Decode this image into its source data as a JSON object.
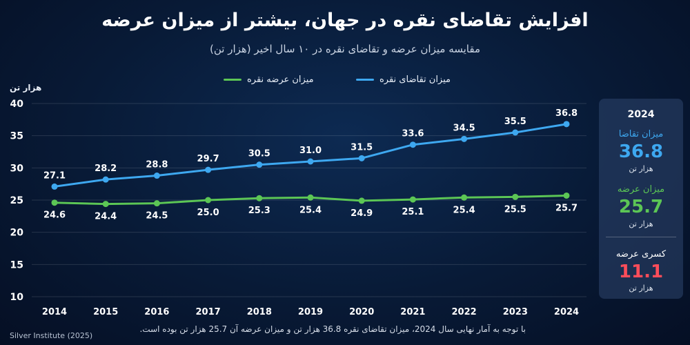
{
  "title": "افزایش تقاضای نقره در جهان، بیشتر از میزان عرضه",
  "subtitle": "مقایسه میزان عرضه و تقاضای نقره در ۱۰ سال اخیر (هزار تن)",
  "legend": {
    "demand_label": "میزان تقاضای نقره",
    "supply_label": "میزان عرضه نقره"
  },
  "colors": {
    "demand": "#3ea8f0",
    "supply": "#5cc655",
    "deficit": "#ff4d5a"
  },
  "chart_data": {
    "type": "line",
    "categories": [
      "2014",
      "2015",
      "2016",
      "2017",
      "2018",
      "2019",
      "2020",
      "2021",
      "2022",
      "2023",
      "2024"
    ],
    "ylabel": "هزار تن",
    "ylim": [
      10,
      40
    ],
    "yticks": [
      10,
      15,
      20,
      25,
      30,
      35,
      40
    ],
    "grid": true,
    "legend_position": "top",
    "series": [
      {
        "name": "میزان تقاضای نقره",
        "values": [
          27.1,
          28.2,
          28.8,
          29.7,
          30.5,
          31.0,
          31.5,
          33.6,
          34.5,
          35.5,
          36.8
        ]
      },
      {
        "name": "میزان عرضه نقره",
        "values": [
          24.6,
          24.4,
          24.5,
          25.0,
          25.3,
          25.4,
          24.9,
          25.1,
          25.4,
          25.5,
          25.7
        ]
      }
    ]
  },
  "side_card": {
    "year": "2024",
    "demand_label": "میزان تقاضا",
    "demand_value": "36.8",
    "demand_unit": "هزار تن",
    "supply_label": "میزان عرضه",
    "supply_value": "25.7",
    "supply_unit": "هزار تن",
    "deficit_label": "کسری عرضه",
    "deficit_value": "11.1",
    "deficit_unit": "هزار تن"
  },
  "note": "با توجه به آمار نهایی سال 2024، میزان تقاضای نقره 36.8 هزار تن و میزان عرضه آن 25.7 هزار تن بوده است.",
  "source": "Silver Institute (2025)"
}
